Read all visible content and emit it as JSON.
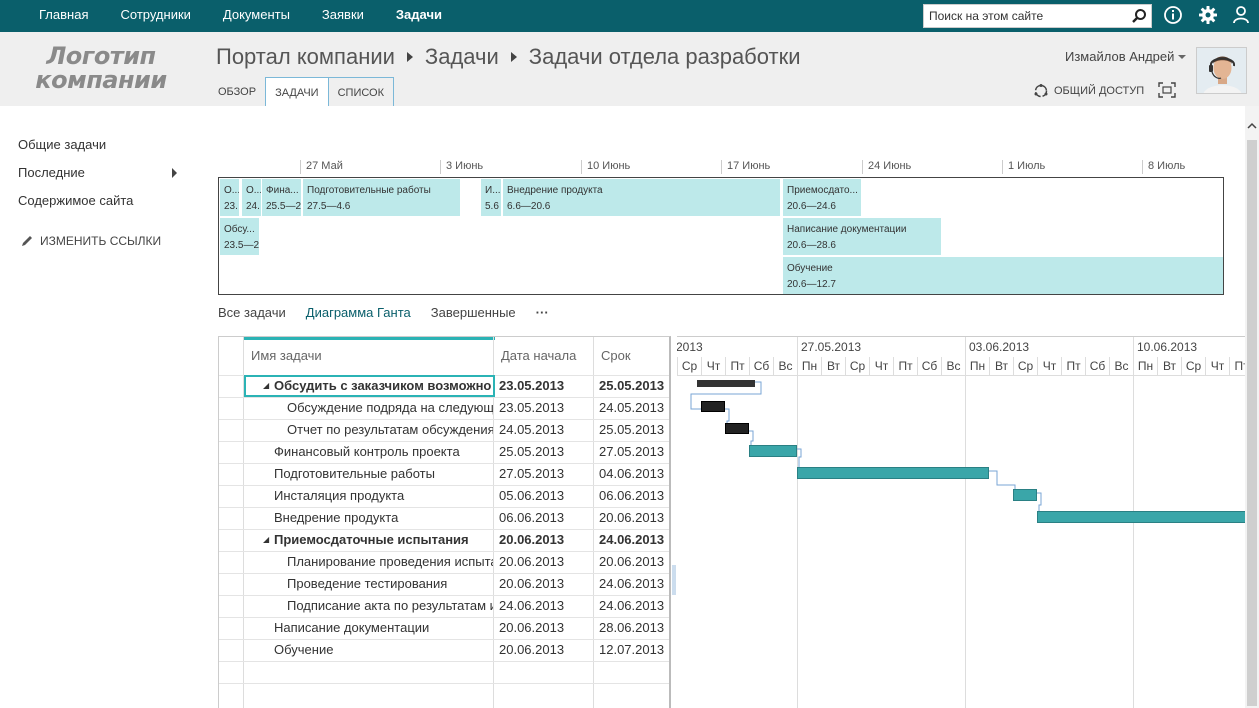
{
  "topnav": [
    "Главная",
    "Сотрудники",
    "Документы",
    "Заявки",
    "Задачи"
  ],
  "search": {
    "placeholder": "Поиск на этом сайте"
  },
  "logo": "Логотип компании",
  "breadcrumb": [
    "Портал компании",
    "Задачи",
    "Задачи отдела разработки"
  ],
  "tabs": [
    "ОБЗОР",
    "ЗАДАЧИ",
    "СПИСОК"
  ],
  "user": {
    "name": "Измайлов Андрей"
  },
  "share_label": "ОБЩИЙ ДОСТУП",
  "leftnav": {
    "items": [
      "Общие задачи",
      "Последние",
      "Содержимое сайта"
    ],
    "edit_links": "ИЗМЕНИТЬ ССЫЛКИ"
  },
  "timeline": {
    "dates": [
      "27 Май",
      "3 Июнь",
      "10 Июнь",
      "17 Июнь",
      "24 Июнь",
      "1 Июль",
      "8 Июль"
    ],
    "bars": [
      {
        "t": "О...",
        "d": "23."
      },
      {
        "t": "О...",
        "d": "24."
      },
      {
        "t": "Фина...",
        "d": "25.5—2"
      },
      {
        "t": "Подготовительные работы",
        "d": "27.5—4.6"
      },
      {
        "t": "И...",
        "d": "5.6"
      },
      {
        "t": "Внедрение продукта",
        "d": "6.6—20.6"
      },
      {
        "t": "Приемосдато...",
        "d": "20.6—24.6"
      },
      {
        "t": "Обсу...",
        "d": "23.5—2"
      },
      {
        "t": "Написание документации",
        "d": "20.6—28.6"
      },
      {
        "t": "Обучение",
        "d": "20.6—12.7"
      }
    ]
  },
  "views": [
    "Все задачи",
    "Диаграмма Ганта",
    "Завершенные",
    "···"
  ],
  "grid": {
    "headers": {
      "name": "Имя задачи",
      "start": "Дата начала",
      "end": "Срок"
    },
    "rows": [
      {
        "name": "Обсудить с заказчиком возможно",
        "start": "23.05.2013",
        "end": "25.05.2013"
      },
      {
        "name": "Обсуждение подряда на следующ",
        "start": "23.05.2013",
        "end": "24.05.2013"
      },
      {
        "name": "Отчет по результатам обсуждения",
        "start": "24.05.2013",
        "end": "25.05.2013"
      },
      {
        "name": "Финансовый контроль проекта",
        "start": "25.05.2013",
        "end": "27.05.2013"
      },
      {
        "name": "Подготовительные работы",
        "start": "27.05.2013",
        "end": "04.06.2013"
      },
      {
        "name": "Инсталяция продукта",
        "start": "05.06.2013",
        "end": "06.06.2013"
      },
      {
        "name": "Внедрение продукта",
        "start": "06.06.2013",
        "end": "20.06.2013"
      },
      {
        "name": "Приемосдаточные испытания",
        "start": "20.06.2013",
        "end": "24.06.2013"
      },
      {
        "name": "Планирование проведения испыта",
        "start": "20.06.2013",
        "end": "20.06.2013"
      },
      {
        "name": "Проведение тестирования",
        "start": "20.06.2013",
        "end": "24.06.2013"
      },
      {
        "name": "Подписание акта по результатам и",
        "start": "24.06.2013",
        "end": "24.06.2013"
      },
      {
        "name": "Написание документации",
        "start": "20.06.2013",
        "end": "28.06.2013"
      },
      {
        "name": "Обучение",
        "start": "20.06.2013",
        "end": "12.07.2013"
      }
    ]
  },
  "gantt": {
    "weeks": [
      "2013",
      "27.05.2013",
      "03.06.2013",
      "10.06.2013"
    ],
    "days": [
      "Ср",
      "Чт",
      "Пт",
      "Сб",
      "Вс",
      "Пн",
      "Вт",
      "Ср",
      "Чт",
      "Пт",
      "Сб",
      "Вс",
      "Пн",
      "Вт",
      "Ср",
      "Чт",
      "Пт",
      "Сб",
      "Вс",
      "Пн",
      "Вт",
      "Ср",
      "Чт",
      "Пт"
    ]
  }
}
